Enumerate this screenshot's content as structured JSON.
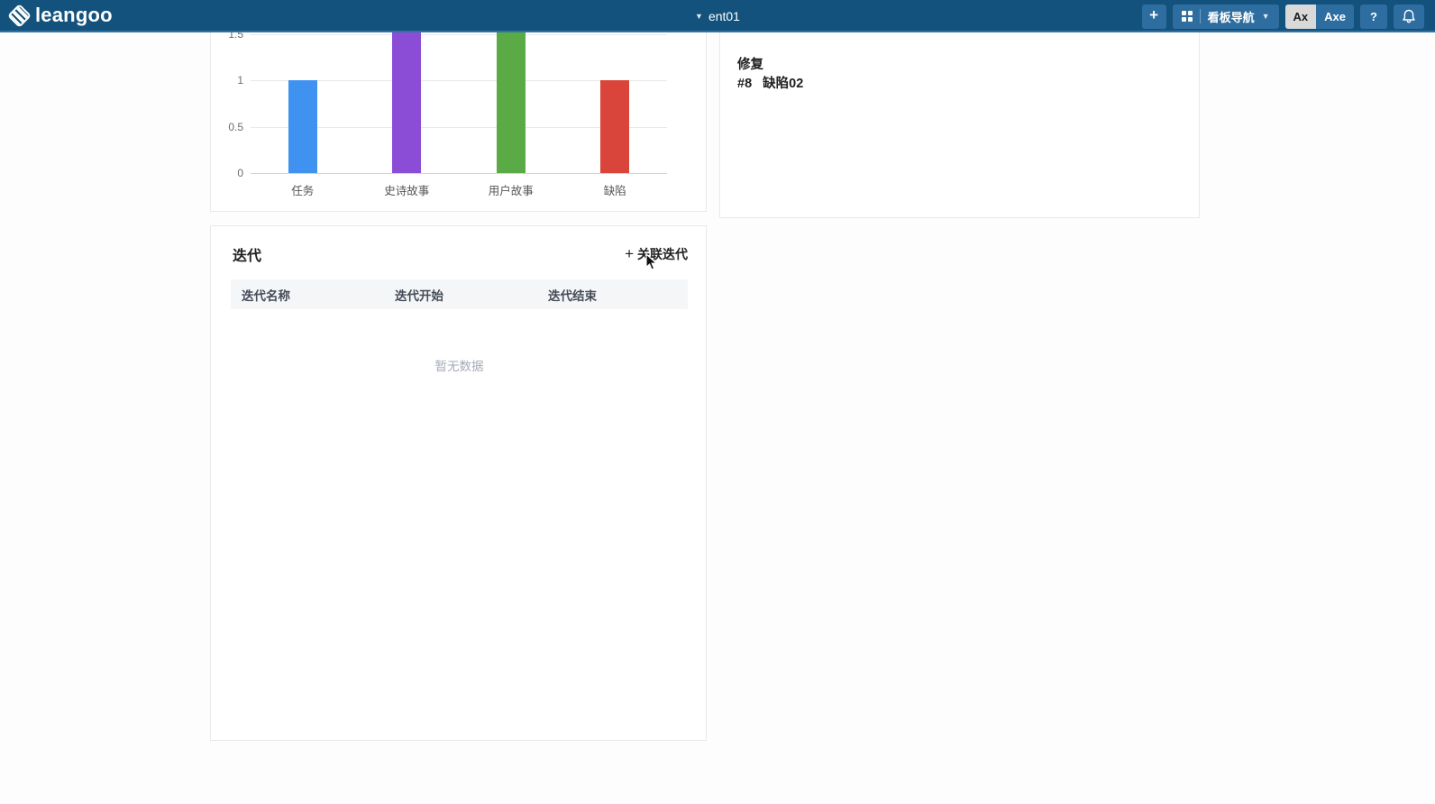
{
  "header": {
    "logo_text": "leangoo",
    "board_selector": "ent01",
    "add_label": "+",
    "nav_label": "看板导航",
    "avatar_short": "Ax",
    "avatar_full": "Axe",
    "help_label": "?"
  },
  "chart_data": {
    "type": "bar",
    "title": "",
    "categories": [
      "任务",
      "史诗故事",
      "用户故事",
      "缺陷"
    ],
    "values": [
      1,
      2,
      2,
      1
    ],
    "colors": [
      "#4092f0",
      "#8b4dd6",
      "#5aab46",
      "#d9453a"
    ],
    "yticks": [
      0,
      0.5,
      1,
      1.5
    ],
    "ylim": [
      0,
      2
    ],
    "xlabel": "",
    "ylabel": "",
    "grid": "horizontal",
    "legend": "none",
    "note": "top of chart clipped by page scroll; purple and green bars extend past visible area"
  },
  "detail_panel": {
    "line1": "修复",
    "line2_id": "#8",
    "line2_name": "缺陷02"
  },
  "iteration_panel": {
    "title": "迭代",
    "link_plus": "+",
    "link_label": "关联迭代",
    "table": {
      "columns": [
        "迭代名称",
        "迭代开始",
        "迭代结束"
      ],
      "rows": []
    },
    "empty_text": "暂无数据"
  },
  "colors": {
    "header_bg": "#14527e",
    "header_button_bg": "#2e6d9f",
    "avatar_active_bg": "#d9d9d9",
    "panel_border": "#e9e9e9",
    "table_header_bg": "#f5f6f8",
    "empty_text": "#a6abb8"
  }
}
